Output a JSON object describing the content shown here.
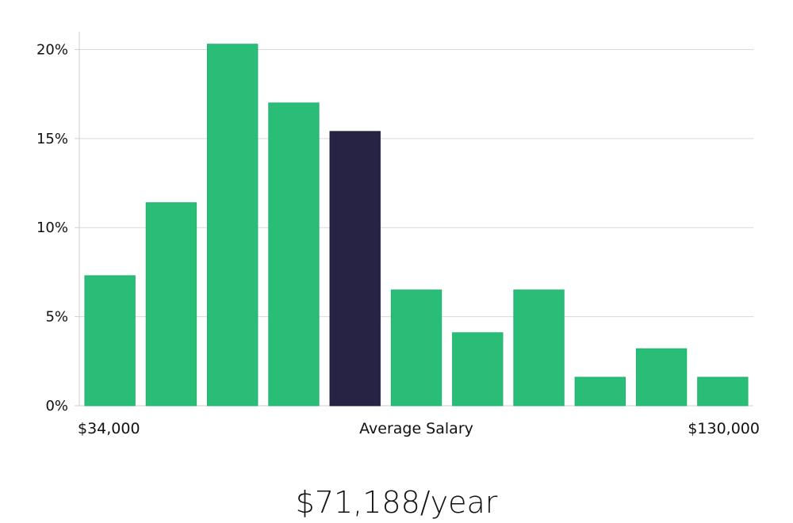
{
  "chart_data": {
    "type": "bar",
    "x_axis": {
      "min_label": "$34,000",
      "center_label": "Average Salary",
      "max_label": "$130,000"
    },
    "y_axis": {
      "ylim": [
        0,
        21
      ],
      "ticks": [
        0,
        5,
        10,
        15,
        20
      ],
      "tick_labels": [
        "0%",
        "5%",
        "10%",
        "15%",
        "20%"
      ]
    },
    "values": [
      7.3,
      11.4,
      20.3,
      17.0,
      15.4,
      6.5,
      4.1,
      6.5,
      1.6,
      3.2,
      1.6
    ],
    "highlight_index": 4,
    "grid": true,
    "colors": {
      "bar": "#2abd78",
      "highlight": "#262345",
      "grid": "#d9d9d9",
      "axis": "#cfcfcf"
    }
  },
  "footer": {
    "salary": "$71,188/year"
  }
}
